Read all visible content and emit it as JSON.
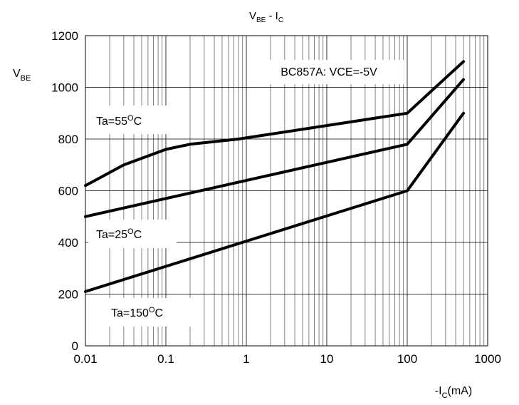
{
  "chart_data": {
    "type": "line",
    "title": {
      "main": "V",
      "sub1": "BE",
      "sep": " - I",
      "sub2": "C"
    },
    "subtitle": "BC857A: VCE=-5V",
    "xlabel": {
      "pre": "-I",
      "sub": "C",
      "post": "(mA)"
    },
    "ylabel": {
      "main": "V",
      "sub": "BE"
    },
    "x_scale": "log",
    "xlim": [
      0.01,
      1000
    ],
    "ylim": [
      0,
      1200
    ],
    "x_ticks": [
      "0.01",
      "0.1",
      "1",
      "10",
      "100",
      "1000"
    ],
    "y_ticks": [
      "0",
      "200",
      "400",
      "600",
      "800",
      "1000",
      "1200"
    ],
    "grid": true,
    "legend": "none",
    "line_color": "#000000",
    "series": [
      {
        "name": "Ta=55°C",
        "label": {
          "pre": "Ta=55",
          "sup": "O",
          "post": "C"
        },
        "points": [
          [
            0.01,
            620
          ],
          [
            0.03,
            700
          ],
          [
            0.1,
            760
          ],
          [
            0.2,
            780
          ],
          [
            0.8,
            800
          ],
          [
            100,
            900
          ],
          [
            500,
            1100
          ]
        ]
      },
      {
        "name": "Ta=25°C",
        "label": {
          "pre": "Ta=25",
          "sup": "O",
          "post": "C"
        },
        "points": [
          [
            0.01,
            500
          ],
          [
            100,
            780
          ],
          [
            500,
            1030
          ]
        ]
      },
      {
        "name": "Ta=150°C",
        "label": {
          "pre": "Ta=150",
          "sup": "O",
          "post": "C"
        },
        "points": [
          [
            0.01,
            210
          ],
          [
            100,
            600
          ],
          [
            500,
            900
          ]
        ]
      }
    ]
  }
}
